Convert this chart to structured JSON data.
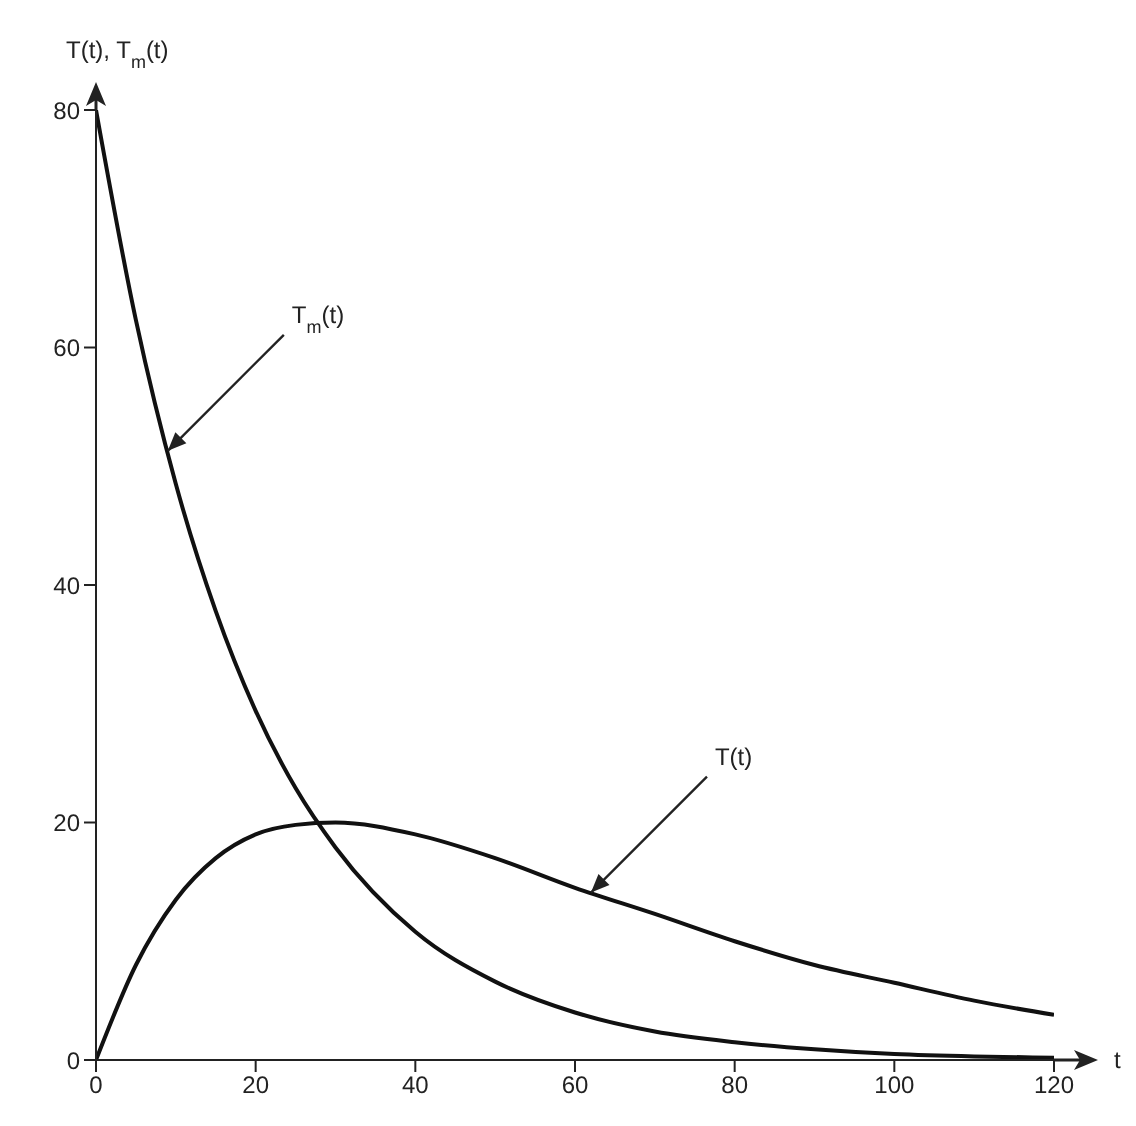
{
  "chart_data": {
    "type": "line",
    "xlabel": "t",
    "ylabel": "T(t), T$_{m}$(t)",
    "x": [
      0,
      5,
      10,
      15,
      20,
      25,
      30,
      40,
      50,
      60,
      70,
      80,
      90,
      100,
      110,
      120
    ],
    "series": [
      {
        "color": "#111111",
        "values": [
          80,
          62.3,
          48.5,
          37.8,
          29.4,
          22.9,
          17.9,
          10.8,
          6.6,
          4.0,
          2.4,
          1.5,
          0.9,
          0.5,
          0.3,
          0.2
        ]
      },
      {
        "color": "#111111",
        "values": [
          0,
          8,
          13.5,
          17,
          19,
          19.8,
          20,
          19,
          17,
          14.5,
          12.3,
          10,
          8,
          6.5,
          5,
          3.8
        ]
      }
    ],
    "xlim": [
      0,
      120
    ],
    "xticks": [
      0,
      20,
      40,
      60,
      80,
      100,
      120
    ],
    "ylim": [
      0,
      80
    ],
    "yticks": [
      0,
      20,
      40,
      60,
      80
    ],
    "annotations": [
      {
        "text": "T$_{m}$(t)",
        "x": 9,
        "y": 51.3
      },
      {
        "text": "T(t)",
        "x": 62,
        "y": 14.1
      }
    ],
    "line_style": "solid",
    "grid": false,
    "legend": false
  }
}
